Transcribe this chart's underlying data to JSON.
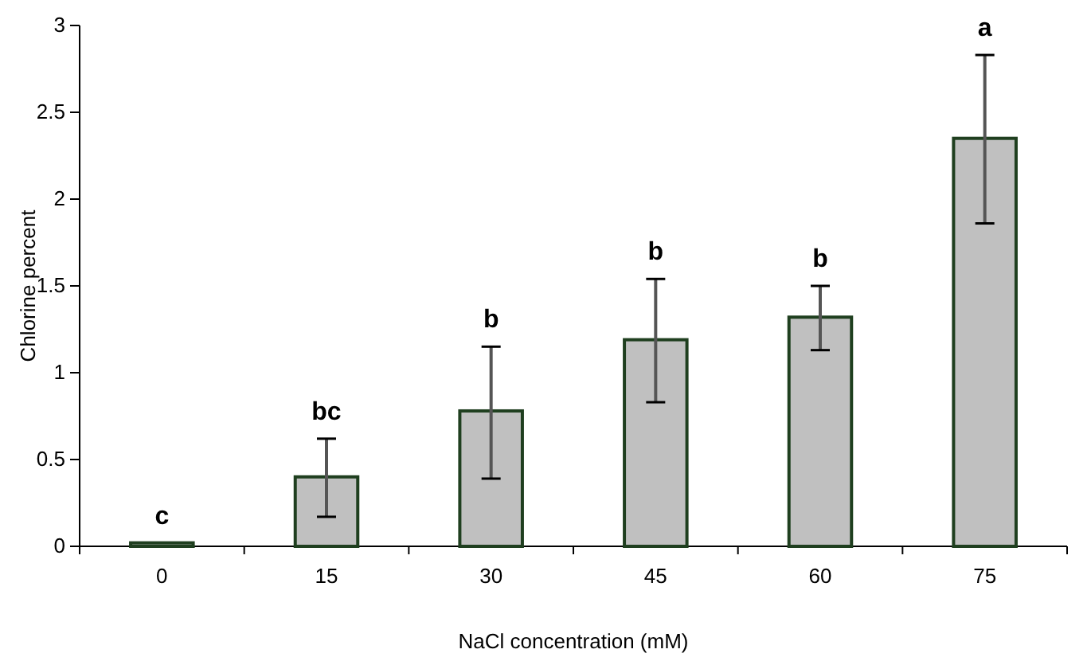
{
  "chart_data": {
    "type": "bar",
    "xlabel": "NaCl concentration (mM)",
    "ylabel": "Chlorine percent",
    "categories": [
      "0",
      "15",
      "30",
      "45",
      "60",
      "75"
    ],
    "values": [
      0.02,
      0.4,
      0.78,
      1.19,
      1.32,
      2.35
    ],
    "errors": [
      null,
      [
        0.17,
        0.62
      ],
      [
        0.39,
        1.15
      ],
      [
        0.83,
        1.54
      ],
      [
        1.13,
        1.5
      ],
      [
        1.86,
        2.83
      ]
    ],
    "color": "#c0c0c0",
    "ylim": [
      0,
      3
    ],
    "yticks": [
      0,
      0.5,
      1,
      1.5,
      2,
      2.5,
      3
    ],
    "grid": false,
    "annotations": [
      "c",
      "bc",
      "b",
      "b",
      "b",
      "a"
    ]
  }
}
